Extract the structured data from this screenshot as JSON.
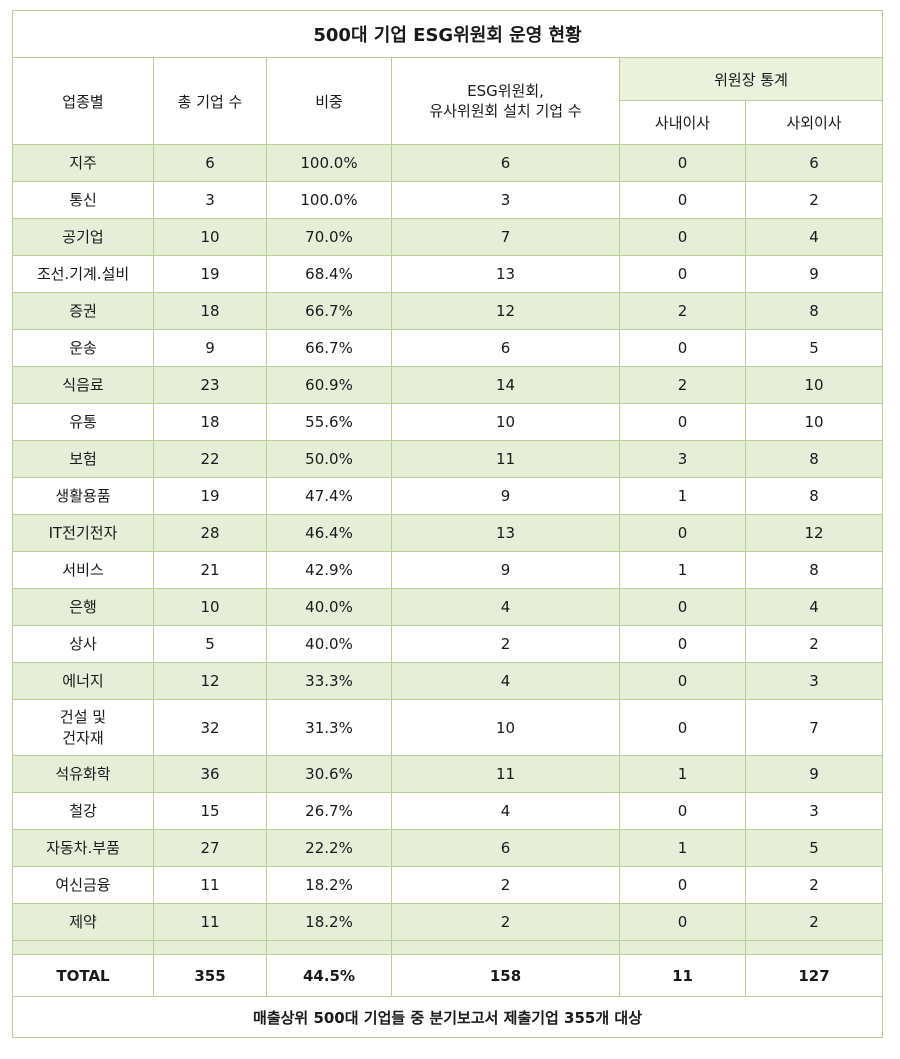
{
  "title": "500대 기업 ESG위원회 운영 현황",
  "headers": {
    "industry": "업종별",
    "total_companies": "총 기업 수",
    "ratio": "비중",
    "esg_committee": "ESG위원회,\n유사위원회 설치 기업 수",
    "chair_stats": "위원장 통계",
    "inside_director": "사내이사",
    "outside_director": "사외이사"
  },
  "rows": [
    {
      "industry": "지주",
      "total": "6",
      "ratio": "100.0%",
      "esg": "6",
      "inside": "0",
      "outside": "6"
    },
    {
      "industry": "통신",
      "total": "3",
      "ratio": "100.0%",
      "esg": "3",
      "inside": "0",
      "outside": "2"
    },
    {
      "industry": "공기업",
      "total": "10",
      "ratio": "70.0%",
      "esg": "7",
      "inside": "0",
      "outside": "4"
    },
    {
      "industry": "조선.기계.설비",
      "total": "19",
      "ratio": "68.4%",
      "esg": "13",
      "inside": "0",
      "outside": "9"
    },
    {
      "industry": "증권",
      "total": "18",
      "ratio": "66.7%",
      "esg": "12",
      "inside": "2",
      "outside": "8"
    },
    {
      "industry": "운송",
      "total": "9",
      "ratio": "66.7%",
      "esg": "6",
      "inside": "0",
      "outside": "5"
    },
    {
      "industry": "식음료",
      "total": "23",
      "ratio": "60.9%",
      "esg": "14",
      "inside": "2",
      "outside": "10"
    },
    {
      "industry": "유통",
      "total": "18",
      "ratio": "55.6%",
      "esg": "10",
      "inside": "0",
      "outside": "10"
    },
    {
      "industry": "보험",
      "total": "22",
      "ratio": "50.0%",
      "esg": "11",
      "inside": "3",
      "outside": "8"
    },
    {
      "industry": "생활용품",
      "total": "19",
      "ratio": "47.4%",
      "esg": "9",
      "inside": "1",
      "outside": "8"
    },
    {
      "industry": "IT전기전자",
      "total": "28",
      "ratio": "46.4%",
      "esg": "13",
      "inside": "0",
      "outside": "12"
    },
    {
      "industry": "서비스",
      "total": "21",
      "ratio": "42.9%",
      "esg": "9",
      "inside": "1",
      "outside": "8"
    },
    {
      "industry": "은행",
      "total": "10",
      "ratio": "40.0%",
      "esg": "4",
      "inside": "0",
      "outside": "4"
    },
    {
      "industry": "상사",
      "total": "5",
      "ratio": "40.0%",
      "esg": "2",
      "inside": "0",
      "outside": "2"
    },
    {
      "industry": "에너지",
      "total": "12",
      "ratio": "33.3%",
      "esg": "4",
      "inside": "0",
      "outside": "3"
    },
    {
      "industry": "건설 및\n건자재",
      "total": "32",
      "ratio": "31.3%",
      "esg": "10",
      "inside": "0",
      "outside": "7"
    },
    {
      "industry": "석유화학",
      "total": "36",
      "ratio": "30.6%",
      "esg": "11",
      "inside": "1",
      "outside": "9"
    },
    {
      "industry": "철강",
      "total": "15",
      "ratio": "26.7%",
      "esg": "4",
      "inside": "0",
      "outside": "3"
    },
    {
      "industry": "자동차.부품",
      "total": "27",
      "ratio": "22.2%",
      "esg": "6",
      "inside": "1",
      "outside": "5"
    },
    {
      "industry": "여신금융",
      "total": "11",
      "ratio": "18.2%",
      "esg": "2",
      "inside": "0",
      "outside": "2"
    },
    {
      "industry": "제약",
      "total": "11",
      "ratio": "18.2%",
      "esg": "2",
      "inside": "0",
      "outside": "2"
    }
  ],
  "total": {
    "industry": "TOTAL",
    "total": "355",
    "ratio": "44.5%",
    "esg": "158",
    "inside": "11",
    "outside": "127"
  },
  "footnote": "매출상위 500대 기업들 중 분기보고서 제출기업 355개 대상"
}
